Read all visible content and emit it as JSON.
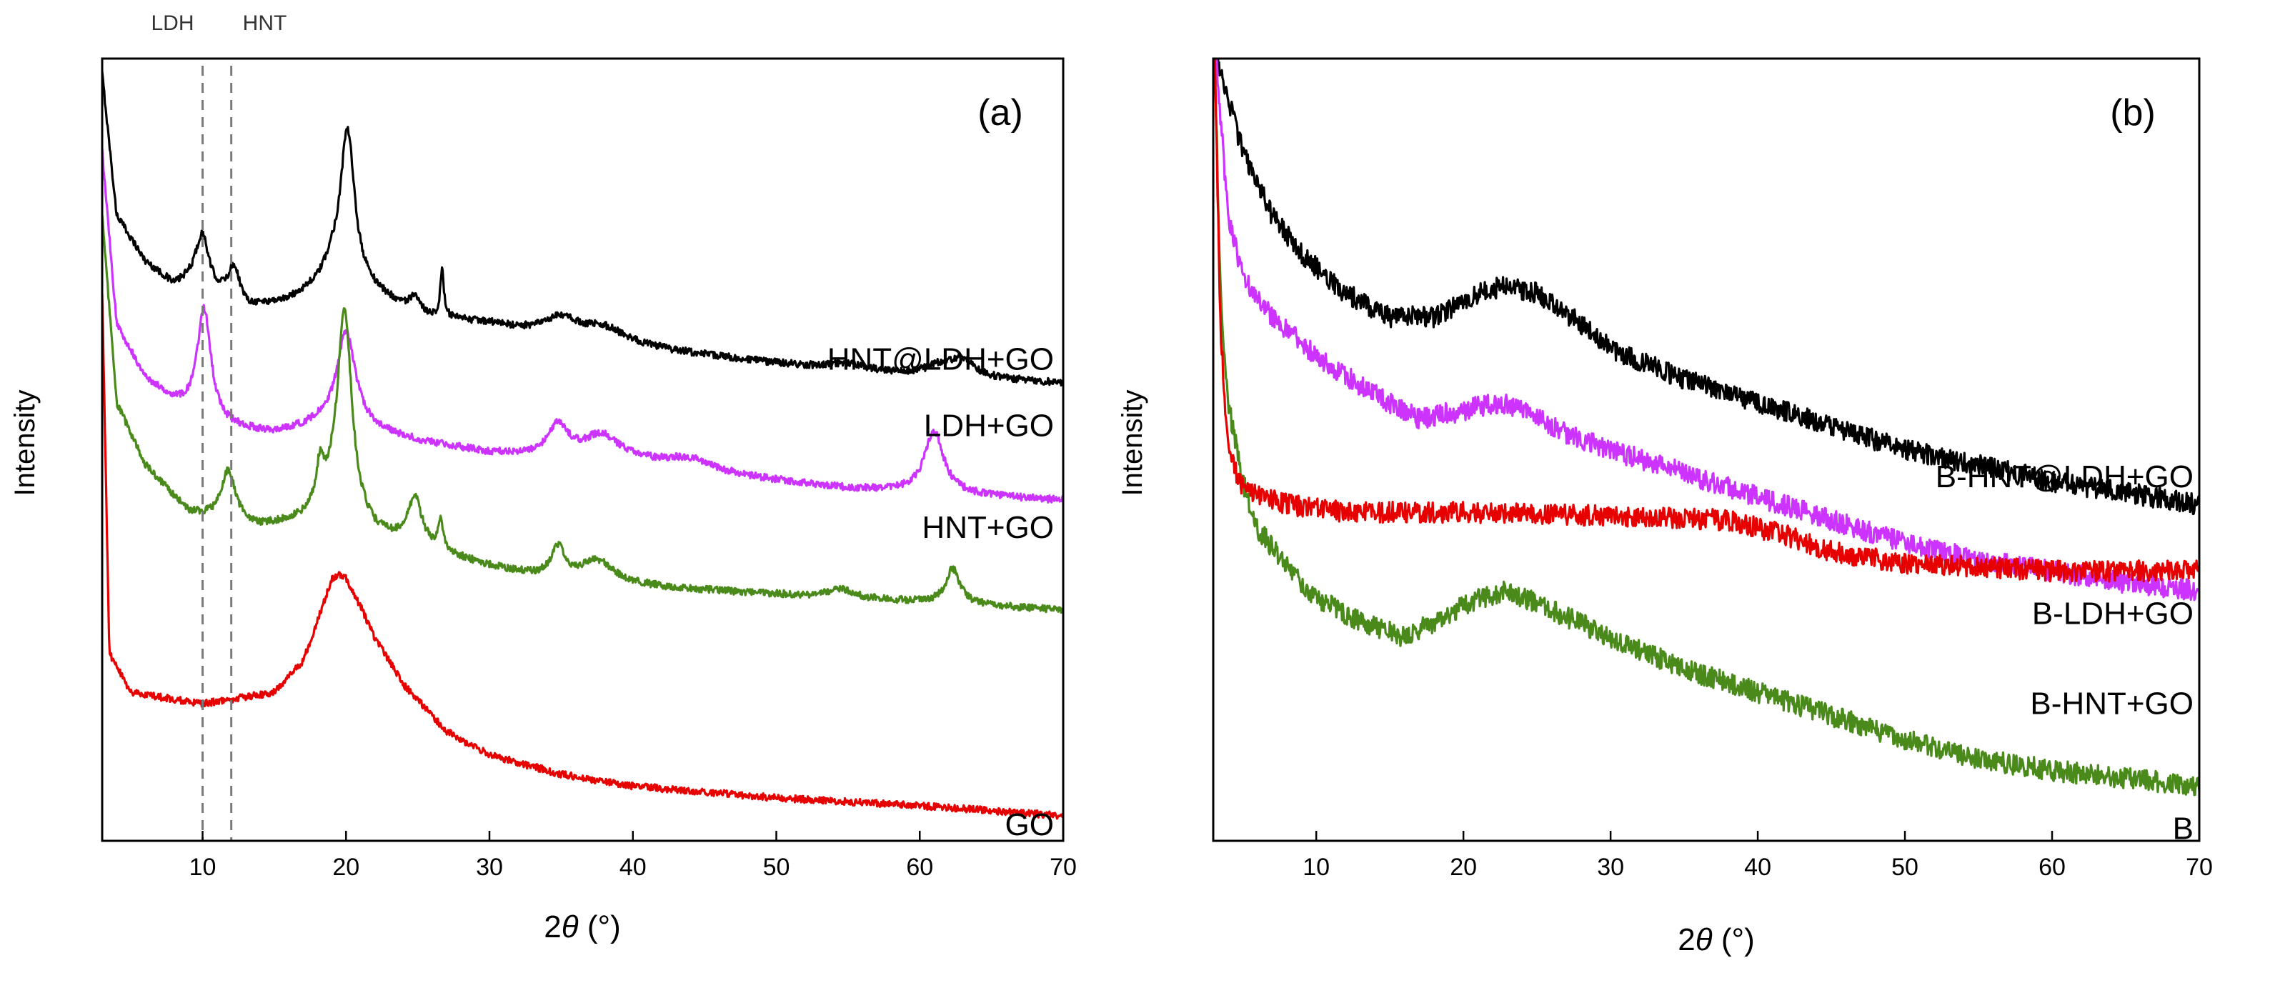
{
  "chart_data": [
    {
      "type": "line",
      "panel_label": "(a)",
      "xlabel_prefix": "2",
      "xlabel_symbol": "θ",
      "xlabel_suffix": " (°)",
      "ylabel": "Intensity",
      "xlim": [
        3,
        70
      ],
      "ylim": [
        0,
        100
      ],
      "x_ticks": [
        10,
        20,
        30,
        40,
        50,
        60,
        70
      ],
      "y_ticks_shown": false,
      "reference_lines": [
        {
          "x": 10,
          "label": "LDH"
        },
        {
          "x": 12,
          "label": "HNT"
        }
      ],
      "series": [
        {
          "name": "HNT@LDH+GO",
          "color": "#000000",
          "label_at": 61.5,
          "baseline": [
            [
              3,
              98
            ],
            [
              4,
              80
            ],
            [
              6,
              74
            ],
            [
              8,
              71
            ],
            [
              9.5,
              72
            ],
            [
              11,
              70
            ],
            [
              13,
              68
            ],
            [
              16,
              69
            ],
            [
              18,
              71
            ],
            [
              19,
              73
            ],
            [
              22,
              70
            ],
            [
              25,
              67
            ],
            [
              30,
              66
            ],
            [
              35,
              64
            ],
            [
              40,
              63
            ],
            [
              45,
              62
            ],
            [
              50,
              61
            ],
            [
              55,
              60
            ],
            [
              60,
              59.5
            ],
            [
              65,
              59
            ],
            [
              70,
              58.5
            ]
          ],
          "peaks": [
            [
              10,
              6,
              0.5
            ],
            [
              12.2,
              4.5,
              0.5
            ],
            [
              20.1,
              19,
              0.6
            ],
            [
              24.8,
              2,
              0.5
            ],
            [
              26.7,
              6,
              0.15
            ],
            [
              35,
              2.5,
              1.5
            ],
            [
              38,
              2,
              2
            ],
            [
              55,
              1,
              1.5
            ],
            [
              61.5,
              1.3,
              1.2
            ],
            [
              63,
              2,
              1
            ]
          ]
        },
        {
          "name": "LDH+GO",
          "color": "#cc33ff",
          "label_at": 53,
          "baseline": [
            [
              3,
              88
            ],
            [
              4,
              66
            ],
            [
              6,
              59
            ],
            [
              8,
              56
            ],
            [
              10,
              53
            ],
            [
              15,
              52
            ],
            [
              18,
              53
            ],
            [
              20,
              53
            ],
            [
              25,
              51
            ],
            [
              30,
              49.5
            ],
            [
              35,
              49
            ],
            [
              40,
              48.5
            ],
            [
              45,
              47
            ],
            [
              50,
              46
            ],
            [
              55,
              45
            ],
            [
              60,
              44.5
            ],
            [
              65,
              44
            ],
            [
              70,
              43.5
            ]
          ],
          "peaks": [
            [
              10.1,
              15,
              0.6
            ],
            [
              20,
              12,
              0.8
            ],
            [
              34.8,
              4,
              0.8
            ],
            [
              37.8,
              3,
              1.5
            ],
            [
              44,
              1.5,
              2
            ],
            [
              61,
              8,
              0.8
            ]
          ]
        },
        {
          "name": "HNT+GO",
          "color": "#4a8a1a",
          "label_at": 40,
          "baseline": [
            [
              3,
              80
            ],
            [
              4,
              56
            ],
            [
              6,
              48
            ],
            [
              9,
              42
            ],
            [
              11,
              41
            ],
            [
              14,
              40
            ],
            [
              17,
              41
            ],
            [
              19,
              43
            ],
            [
              22,
              39
            ],
            [
              26,
              37
            ],
            [
              30,
              35
            ],
            [
              35,
              33
            ],
            [
              40,
              32.5
            ],
            [
              45,
              32
            ],
            [
              50,
              31.5
            ],
            [
              55,
              31
            ],
            [
              60,
              30.5
            ],
            [
              65,
              30
            ],
            [
              70,
              29.5
            ]
          ],
          "peaks": [
            [
              11.8,
              6.5,
              0.6
            ],
            [
              18.2,
              5,
              0.3
            ],
            [
              19.9,
              26,
              0.6
            ],
            [
              24.8,
              6,
              0.6
            ],
            [
              26.6,
              4,
              0.2
            ],
            [
              34.8,
              4,
              0.6
            ],
            [
              37.5,
              3,
              1.5
            ],
            [
              54.5,
              1.2,
              1
            ],
            [
              62.3,
              4.5,
              0.6
            ]
          ]
        },
        {
          "name": "GO",
          "color": "#e60000",
          "label_at": 2,
          "baseline": [
            [
              3,
              70
            ],
            [
              3.5,
              24
            ],
            [
              5,
              19
            ],
            [
              10,
              17.5
            ],
            [
              15,
              19
            ],
            [
              17,
              23
            ],
            [
              18,
              28
            ],
            [
              19,
              33.5
            ],
            [
              19.5,
              34
            ],
            [
              20,
              33.5
            ],
            [
              21,
              30
            ],
            [
              22,
              26
            ],
            [
              24,
              20
            ],
            [
              27,
              14
            ],
            [
              30,
              11
            ],
            [
              35,
              8.5
            ],
            [
              40,
              7
            ],
            [
              50,
              5.5
            ],
            [
              60,
              4.5
            ],
            [
              70,
              3.2
            ]
          ],
          "peaks": []
        }
      ]
    },
    {
      "type": "line",
      "panel_label": "(b)",
      "xlabel_prefix": "2",
      "xlabel_symbol": "θ",
      "xlabel_suffix": " (°)",
      "ylabel": "Intensity",
      "xlim": [
        3,
        70
      ],
      "ylim": [
        0,
        100
      ],
      "x_ticks": [
        10,
        20,
        30,
        40,
        50,
        60,
        70
      ],
      "y_ticks_shown": false,
      "series": [
        {
          "name": "B-HNT@LDH+GO",
          "color": "#000000",
          "label_at": 46.5,
          "baseline": [
            [
              3.3,
              100
            ],
            [
              5,
              88
            ],
            [
              7,
              80
            ],
            [
              9,
              75
            ],
            [
              12,
              70
            ],
            [
              15,
              67
            ],
            [
              18,
              67
            ],
            [
              21,
              70
            ],
            [
              23,
              71
            ],
            [
              25,
              70
            ],
            [
              28,
              66
            ],
            [
              30,
              63
            ],
            [
              35,
              59
            ],
            [
              40,
              56
            ],
            [
              45,
              53
            ],
            [
              50,
              50
            ],
            [
              55,
              48
            ],
            [
              60,
              46
            ],
            [
              65,
              44.5
            ],
            [
              70,
              43
            ]
          ],
          "peaks": []
        },
        {
          "name": "B-LDH+GO",
          "color": "#cc33ff",
          "label_at": 29,
          "baseline": [
            [
              3.2,
              100
            ],
            [
              4,
              80
            ],
            [
              5,
              72
            ],
            [
              7,
              67
            ],
            [
              10,
              62
            ],
            [
              14,
              57
            ],
            [
              17,
              54
            ],
            [
              20,
              55
            ],
            [
              22,
              56
            ],
            [
              24,
              55.5
            ],
            [
              27,
              52
            ],
            [
              30,
              50
            ],
            [
              35,
              47
            ],
            [
              40,
              44
            ],
            [
              45,
              41
            ],
            [
              50,
              38
            ],
            [
              55,
              36
            ],
            [
              60,
              34.5
            ],
            [
              65,
              33
            ],
            [
              70,
              32
            ]
          ],
          "peaks": []
        },
        {
          "name": "B-HNT+GO",
          "color": "#4a8a1a",
          "label_at": 17.5,
          "baseline": [
            [
              3.1,
              100
            ],
            [
              3.5,
              70
            ],
            [
              4,
              56
            ],
            [
              5,
              46
            ],
            [
              6,
              40
            ],
            [
              8,
              35
            ],
            [
              10,
              31
            ],
            [
              13,
              28
            ],
            [
              16,
              26
            ],
            [
              19,
              29
            ],
            [
              21,
              31
            ],
            [
              23,
              32
            ],
            [
              26,
              29.5
            ],
            [
              30,
              26
            ],
            [
              35,
              22
            ],
            [
              40,
              19
            ],
            [
              45,
              16
            ],
            [
              50,
              13
            ],
            [
              55,
              10.5
            ],
            [
              60,
              9
            ],
            [
              65,
              8
            ],
            [
              70,
              7
            ]
          ],
          "peaks": []
        },
        {
          "name": "B",
          "color": "#e60000",
          "label_at": 1.5,
          "baseline": [
            [
              3.1,
              100
            ],
            [
              3.5,
              65
            ],
            [
              4,
              50
            ],
            [
              5,
              45
            ],
            [
              8,
              43
            ],
            [
              12,
              42
            ],
            [
              20,
              42
            ],
            [
              30,
              41.5
            ],
            [
              38,
              41
            ],
            [
              42,
              39
            ],
            [
              45,
              37
            ],
            [
              50,
              35.5
            ],
            [
              55,
              35
            ],
            [
              60,
              34.5
            ],
            [
              65,
              34.5
            ],
            [
              70,
              34.5
            ]
          ],
          "peaks": []
        }
      ]
    }
  ]
}
